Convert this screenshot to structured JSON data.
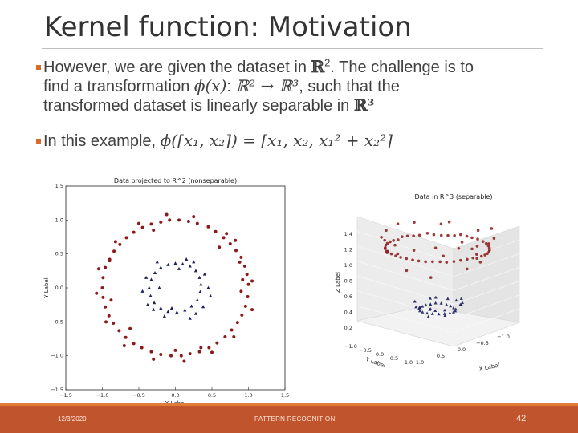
{
  "title": "Kernel function: Motivation",
  "bullets": {
    "b1_line1_a": "However, we are given the dataset in ",
    "b1_R2": "ℝ",
    "b1_line1_b": ". The challenge is to",
    "b1_line2_a": "find a transformation ",
    "b1_phi": "ϕ(x)",
    "b1_line2_b": ": ",
    "b1_map": "ℝ² → ℝ³",
    "b1_line2_c": ", such that the",
    "b1_line3_a": "transformed dataset is linearly separable in ",
    "b1_R3": "ℝ³",
    "b2_a": "In this example, ",
    "b2_formula": "ϕ([x₁, x₂]) = [x₁, x₂, x₁² + x₂²]"
  },
  "footer": {
    "date": "12/3/2020",
    "name": "PATTERN RECOGNITION",
    "page": "42"
  },
  "chart_data": [
    {
      "type": "scatter",
      "title": "Data projected to R^2 (nonseparable)",
      "xlabel": "X Label",
      "ylabel": "Y Label",
      "xlim": [
        -1.5,
        1.5
      ],
      "ylim": [
        -1.5,
        1.5
      ],
      "xticks": [
        "-1.5",
        "-1.0",
        "-0.5",
        "0.0",
        "0.5",
        "1.0",
        "1.5"
      ],
      "yticks": [
        "1.5",
        "1.0",
        "0.5",
        "0.0",
        "-0.5",
        "-1.0",
        "-1.5"
      ],
      "series": [
        {
          "marker": "circle",
          "color": "#8b1a1a",
          "description_shape": "outer ring radius ~1.0"
        },
        {
          "marker": "triangle",
          "color": "#1a1f5e",
          "description_shape": "inner ring radius ~0.35"
        }
      ],
      "outer_points": [
        [
          1.0,
          0.05
        ],
        [
          0.98,
          0.2
        ],
        [
          0.95,
          0.32
        ],
        [
          0.9,
          0.45
        ],
        [
          0.83,
          0.55
        ],
        [
          0.75,
          0.65
        ],
        [
          0.66,
          0.74
        ],
        [
          0.55,
          0.83
        ],
        [
          0.45,
          0.9
        ],
        [
          0.3,
          0.95
        ],
        [
          0.18,
          0.98
        ],
        [
          0.05,
          1.0
        ],
        [
          -0.08,
          1.0
        ],
        [
          -0.2,
          0.97
        ],
        [
          -0.33,
          0.94
        ],
        [
          -0.45,
          0.89
        ],
        [
          -0.57,
          0.82
        ],
        [
          -0.67,
          0.74
        ],
        [
          -0.76,
          0.64
        ],
        [
          -0.84,
          0.54
        ],
        [
          -0.9,
          0.42
        ],
        [
          -0.96,
          0.3
        ],
        [
          -0.99,
          0.15
        ],
        [
          -1.0,
          0.0
        ],
        [
          -0.99,
          -0.14
        ],
        [
          -0.96,
          -0.28
        ],
        [
          -0.91,
          -0.41
        ],
        [
          -0.85,
          -0.52
        ],
        [
          -0.77,
          -0.63
        ],
        [
          -0.68,
          -0.73
        ],
        [
          -0.57,
          -0.82
        ],
        [
          -0.46,
          -0.88
        ],
        [
          -0.33,
          -0.94
        ],
        [
          -0.2,
          -0.98
        ],
        [
          -0.06,
          -1.0
        ],
        [
          0.08,
          -1.0
        ],
        [
          0.2,
          -0.97
        ],
        [
          0.33,
          -0.94
        ],
        [
          0.46,
          -0.88
        ],
        [
          0.57,
          -0.81
        ],
        [
          0.68,
          -0.72
        ],
        [
          0.77,
          -0.62
        ],
        [
          0.85,
          -0.51
        ],
        [
          0.91,
          -0.4
        ],
        [
          0.96,
          -0.27
        ],
        [
          0.99,
          -0.13
        ],
        [
          1.05,
          0.1
        ],
        [
          0.88,
          0.38
        ],
        [
          0.7,
          0.8
        ],
        [
          0.25,
          1.05
        ],
        [
          -0.12,
          1.08
        ],
        [
          -0.5,
          0.95
        ],
        [
          -0.82,
          0.68
        ],
        [
          -1.05,
          0.28
        ],
        [
          -1.08,
          -0.08
        ],
        [
          -0.95,
          -0.5
        ],
        [
          -0.7,
          -0.85
        ],
        [
          -0.3,
          -1.05
        ],
        [
          0.12,
          -1.08
        ],
        [
          0.5,
          -0.95
        ],
        [
          0.8,
          -0.72
        ],
        [
          1.05,
          -0.32
        ],
        [
          0.92,
          0.12
        ],
        [
          0.82,
          0.7
        ],
        [
          -0.3,
          0.85
        ],
        [
          -0.88,
          -0.18
        ],
        [
          0.35,
          -0.88
        ],
        [
          0.6,
          0.6
        ],
        [
          -0.62,
          -0.6
        ],
        [
          0.0,
          -0.92
        ],
        [
          -0.9,
          0.4
        ],
        [
          0.9,
          -0.05
        ]
      ],
      "inner_points": [
        [
          0.35,
          0.05
        ],
        [
          0.33,
          0.15
        ],
        [
          0.28,
          0.25
        ],
        [
          0.2,
          0.32
        ],
        [
          0.1,
          0.35
        ],
        [
          0.0,
          0.36
        ],
        [
          -0.1,
          0.34
        ],
        [
          -0.2,
          0.3
        ],
        [
          -0.28,
          0.22
        ],
        [
          -0.33,
          0.12
        ],
        [
          -0.36,
          0.0
        ],
        [
          -0.34,
          -0.12
        ],
        [
          -0.29,
          -0.22
        ],
        [
          -0.2,
          -0.3
        ],
        [
          -0.1,
          -0.35
        ],
        [
          0.02,
          -0.36
        ],
        [
          0.13,
          -0.33
        ],
        [
          0.22,
          -0.27
        ],
        [
          0.3,
          -0.18
        ],
        [
          0.34,
          -0.06
        ],
        [
          0.4,
          0.2
        ],
        [
          -0.4,
          0.15
        ],
        [
          0.15,
          0.42
        ],
        [
          -0.15,
          -0.42
        ],
        [
          0.38,
          -0.28
        ],
        [
          -0.38,
          -0.25
        ],
        [
          0.05,
          0.28
        ],
        [
          -0.25,
          0.38
        ],
        [
          0.25,
          0.38
        ],
        [
          0.45,
          0.0
        ],
        [
          -0.45,
          -0.05
        ],
        [
          0.2,
          -0.45
        ],
        [
          -0.05,
          -0.3
        ],
        [
          0.28,
          -0.38
        ],
        [
          -0.22,
          0.0
        ],
        [
          0.48,
          -0.12
        ],
        [
          -0.3,
          -0.32
        ]
      ]
    },
    {
      "type": "scatter",
      "title": "Data in R^3 (separable)",
      "xlabel": "X Label",
      "ylabel": "Y Label",
      "zlabel": "Z Label",
      "zticks": [
        "1.4",
        "1.2",
        "1.0",
        "0.8",
        "0.6",
        "0.4",
        "0.2"
      ],
      "xticks": [
        "1.0",
        "0.5",
        "0.0",
        "-0.5",
        "-1.0"
      ],
      "yticks": [
        "-1.0",
        "-0.5",
        "0.0",
        "0.5",
        "1.0"
      ]
    }
  ]
}
